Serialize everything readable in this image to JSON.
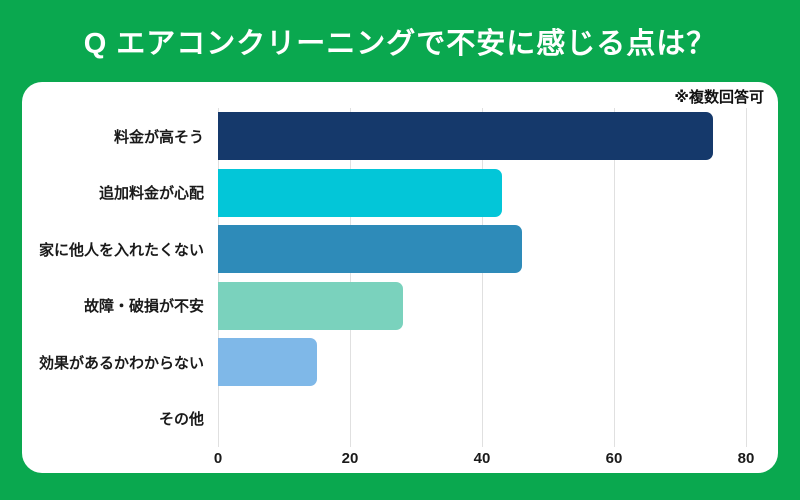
{
  "page": {
    "background_color": "#0aa84f",
    "card_color": "#ffffff"
  },
  "header": {
    "title": "Q エアコンクリーニングで不安に感じる点は？",
    "title_color": "#ffffff"
  },
  "card": {
    "note": "※複数回答可"
  },
  "chart_data": {
    "type": "bar",
    "orientation": "horizontal",
    "title": "Q エアコンクリーニングで不安に感じる点は？",
    "note": "※複数回答可",
    "categories": [
      "料金が高そう",
      "追加料金が心配",
      "家に他人を入れたくない",
      "故障・破損が不安",
      "効果があるかわからない",
      "その他"
    ],
    "values": [
      75,
      43,
      46,
      28,
      15,
      0
    ],
    "bar_colors": [
      "#15396b",
      "#03c6d8",
      "#2e8bb9",
      "#7ad2bd",
      "#7fb8e8",
      "#7fb8e8"
    ],
    "xlabel": "",
    "ylabel": "",
    "xlim": [
      0,
      80
    ],
    "x_ticks": [
      0,
      20,
      40,
      60,
      80
    ],
    "grid": true,
    "gridline_color": "#e0e0e0",
    "legend": false
  }
}
